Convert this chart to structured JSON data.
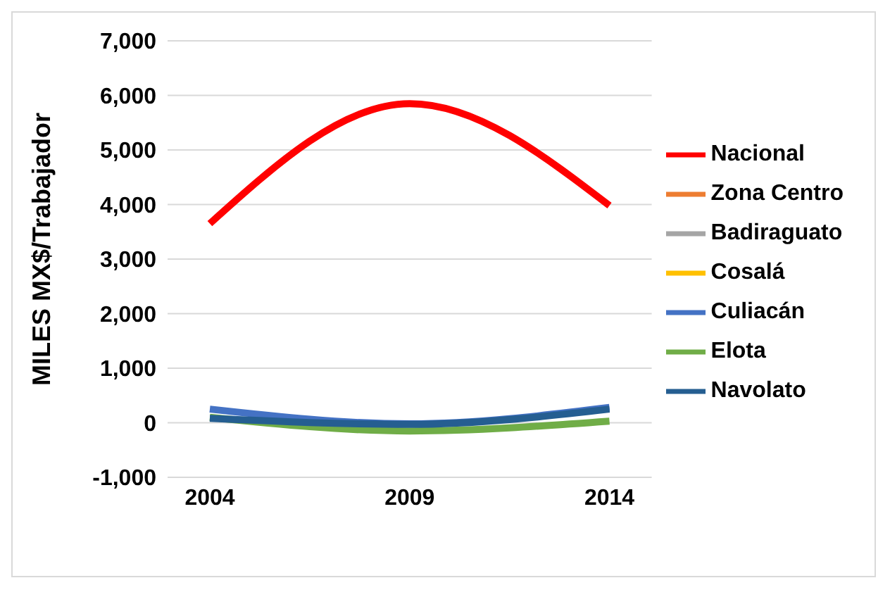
{
  "chart_data": {
    "type": "line",
    "ylabel": "MILES MX$/Trabajador",
    "categories": [
      "2004",
      "2009",
      "2014"
    ],
    "series": [
      {
        "name": "Nacional",
        "color": "#ff0000",
        "values": [
          3650,
          5850,
          3980
        ]
      },
      {
        "name": "Zona Centro",
        "color": "#ed7d31",
        "values": [
          null,
          null,
          null
        ]
      },
      {
        "name": "Badiraguato",
        "color": "#a5a5a5",
        "values": [
          null,
          null,
          null
        ]
      },
      {
        "name": "Cosalá",
        "color": "#ffc000",
        "values": [
          null,
          null,
          null
        ]
      },
      {
        "name": "Culiacán",
        "color": "#4472c4",
        "values": [
          250,
          -20,
          280
        ]
      },
      {
        "name": "Elota",
        "color": "#70ad47",
        "values": [
          100,
          -150,
          30
        ]
      },
      {
        "name": "Navolato",
        "color": "#255e91",
        "values": [
          80,
          -30,
          250
        ]
      }
    ],
    "ylim": [
      -1000,
      7000
    ],
    "yticks": [
      {
        "value": -1000,
        "label": "-1,000"
      },
      0,
      {
        "value": 1000,
        "label": "1,000"
      },
      {
        "value": 2000,
        "label": "2,000"
      },
      {
        "value": 3000,
        "label": "3,000"
      },
      {
        "value": 4000,
        "label": "4,000"
      },
      {
        "value": 5000,
        "label": "5,000"
      },
      {
        "value": 6000,
        "label": "6,000"
      },
      {
        "value": 7000,
        "label": "7,000"
      }
    ],
    "grid": "y",
    "legend": "right",
    "marker": "none",
    "line_style": "solid"
  }
}
